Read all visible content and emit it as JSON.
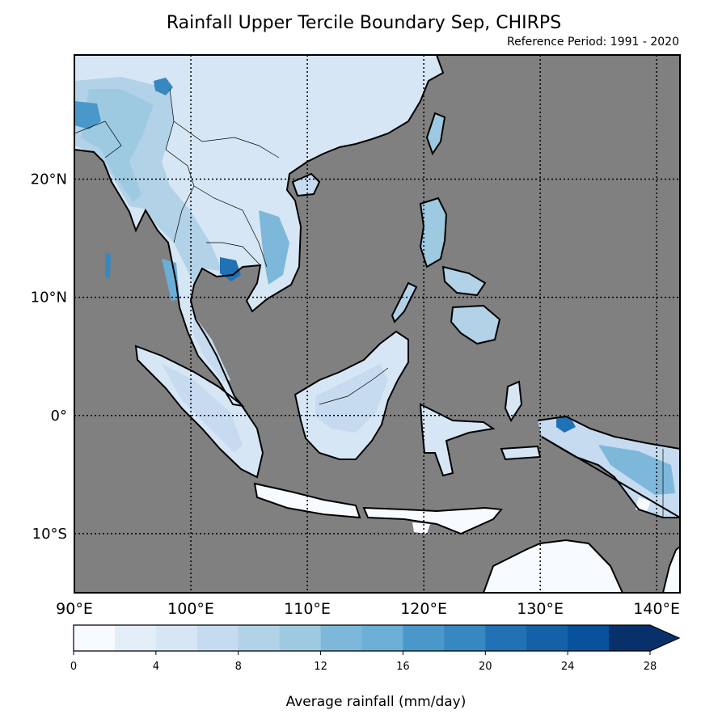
{
  "title": "Rainfall Upper Tercile Boundary Sep, CHIRPS",
  "subtitle": "Reference Period: 1991 - 2020",
  "map": {
    "ocean_color": "#808080",
    "lon_ticks": [
      {
        "value": 90,
        "label": "90°E"
      },
      {
        "value": 100,
        "label": "100°E"
      },
      {
        "value": 110,
        "label": "110°E"
      },
      {
        "value": 120,
        "label": "120°E"
      },
      {
        "value": 130,
        "label": "130°E"
      },
      {
        "value": 140,
        "label": "140°E"
      }
    ],
    "lat_ticks": [
      {
        "value": 20,
        "label": "20°N"
      },
      {
        "value": 10,
        "label": "10°N"
      },
      {
        "value": 0,
        "label": "0°"
      },
      {
        "value": -10,
        "label": "10°S"
      }
    ],
    "lon_range": [
      90,
      142
    ],
    "lat_range": [
      -15,
      30.5
    ],
    "grid": true
  },
  "colorbar": {
    "label": "Average rainfall (mm/day)",
    "tick_labels": [
      "0",
      "4",
      "8",
      "12",
      "16",
      "20",
      "24",
      "28"
    ],
    "levels": [
      0,
      2,
      4,
      6,
      8,
      10,
      12,
      14,
      16,
      18,
      20,
      22,
      24,
      26,
      28
    ],
    "colors": [
      "#f7fbff",
      "#e3eef9",
      "#d6e6f4",
      "#c6dbef",
      "#b1d2e7",
      "#9ecae1",
      "#7db8da",
      "#6baed6",
      "#4a98c9",
      "#3787c0",
      "#2171b5",
      "#1461a8",
      "#08519c",
      "#08306b"
    ],
    "extend": "max"
  }
}
